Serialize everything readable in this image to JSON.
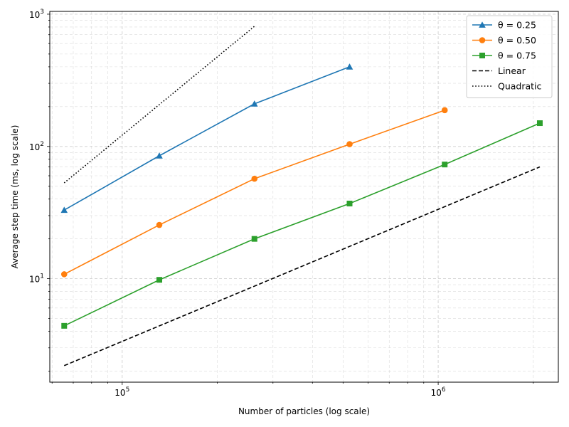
{
  "chart_data": {
    "type": "line",
    "xscale": "log",
    "yscale": "log",
    "xlabel": "Number of particles (log scale)",
    "ylabel": "Average step time (ms, log scale)",
    "xlim": [
      59000,
      2400000
    ],
    "ylim": [
      1.65,
      1050
    ],
    "grid": true,
    "legend_position": "top-right",
    "x_ticks": [
      {
        "value": 100000,
        "base": "10",
        "exp": "5"
      },
      {
        "value": 1000000,
        "base": "10",
        "exp": "6"
      }
    ],
    "y_ticks": [
      {
        "value": 10,
        "base": "10",
        "exp": "1"
      },
      {
        "value": 100,
        "base": "10",
        "exp": "2"
      },
      {
        "value": 1000,
        "base": "10",
        "exp": "3"
      }
    ],
    "series": [
      {
        "name": "θ = 0.25",
        "color": "#1f77b4",
        "marker": "triangle",
        "style": "solid",
        "x": [
          65536,
          131072,
          262144,
          524288
        ],
        "y": [
          33,
          85,
          210,
          400
        ]
      },
      {
        "name": "θ = 0.50",
        "color": "#ff7f0e",
        "marker": "circle",
        "style": "solid",
        "x": [
          65536,
          131072,
          262144,
          524288,
          1048576
        ],
        "y": [
          10.8,
          25.5,
          57,
          104,
          188
        ]
      },
      {
        "name": "θ = 0.75",
        "color": "#2ca02c",
        "marker": "square",
        "style": "solid",
        "x": [
          65536,
          131072,
          262144,
          524288,
          1048576,
          2097152
        ],
        "y": [
          4.4,
          9.8,
          20,
          37,
          73,
          150
        ]
      },
      {
        "name": "Linear",
        "color": "#000000",
        "marker": "none",
        "style": "dashed",
        "x": [
          65536,
          2097152
        ],
        "y": [
          2.2,
          70
        ]
      },
      {
        "name": "Quadratic",
        "color": "#000000",
        "marker": "none",
        "style": "dotted",
        "x": [
          65536,
          262144
        ],
        "y": [
          53,
          810
        ]
      }
    ]
  }
}
